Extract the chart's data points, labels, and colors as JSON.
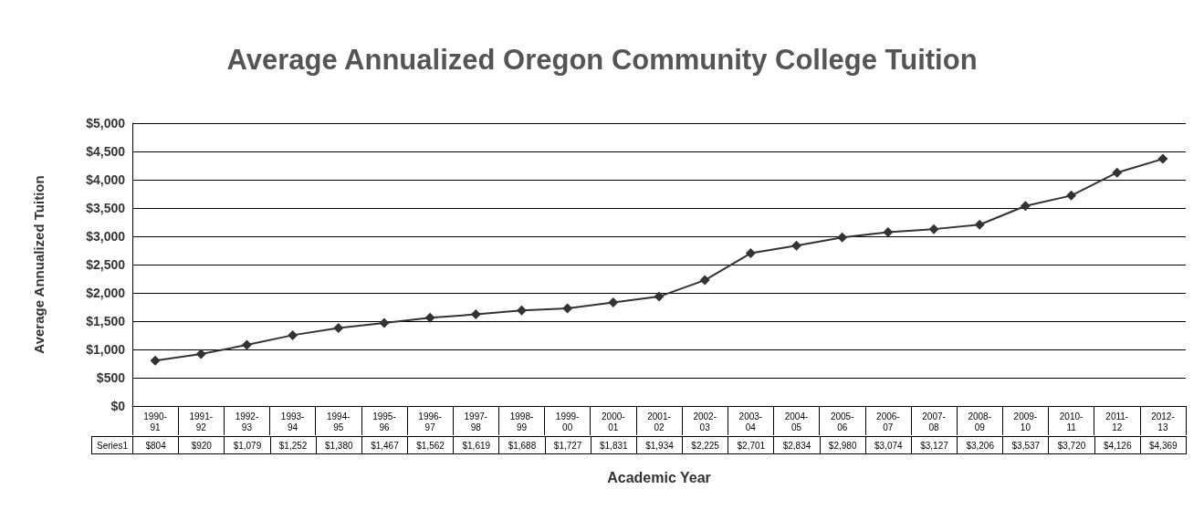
{
  "chart_data": {
    "type": "line",
    "title": "Average Annualized Oregon Community College Tuition",
    "xlabel": "Academic Year",
    "ylabel": "Average Annualized Tuition",
    "categories": [
      "1990-91",
      "1991-92",
      "1992-93",
      "1993-94",
      "1994-95",
      "1995-96",
      "1996-97",
      "1997-98",
      "1998-99",
      "1999-00",
      "2000-01",
      "2001-02",
      "2002-03",
      "2003-04",
      "2004-05",
      "2005-06",
      "2006-07",
      "2007-08",
      "2008-09",
      "2009-10",
      "2010-11",
      "2011-12",
      "2012-13"
    ],
    "series": [
      {
        "name": "Series1",
        "color": "#333333",
        "values": [
          804,
          920,
          1079,
          1252,
          1380,
          1467,
          1562,
          1619,
          1688,
          1727,
          1831,
          1934,
          2225,
          2701,
          2834,
          2980,
          3074,
          3127,
          3206,
          3537,
          3720,
          4126,
          4369
        ],
        "value_labels": [
          "$804",
          "$920",
          "$1,079",
          "$1,252",
          "$1,380",
          "$1,467",
          "$1,562",
          "$1,619",
          "$1,688",
          "$1,727",
          "$1,831",
          "$1,934",
          "$2,225",
          "$2,701",
          "$2,834",
          "$2,980",
          "$3,074",
          "$3,127",
          "$3,206",
          "$3,537",
          "$3,720",
          "$4,126",
          "$4,369"
        ]
      }
    ],
    "ylim": [
      0,
      5000
    ],
    "yticks": [
      {
        "value": 0,
        "label": "$0"
      },
      {
        "value": 500,
        "label": "$500"
      },
      {
        "value": 1000,
        "label": "$1,000"
      },
      {
        "value": 1500,
        "label": "$1,500"
      },
      {
        "value": 2000,
        "label": "$2,000"
      },
      {
        "value": 2500,
        "label": "$2,500"
      },
      {
        "value": 3000,
        "label": "$3,000"
      },
      {
        "value": 3500,
        "label": "$3,500"
      },
      {
        "value": 4000,
        "label": "$4,000"
      },
      {
        "value": 4500,
        "label": "$4,500"
      },
      {
        "value": 5000,
        "label": "$5,000"
      }
    ],
    "grid": "y",
    "marker": "diamond",
    "line_style": "solid"
  }
}
